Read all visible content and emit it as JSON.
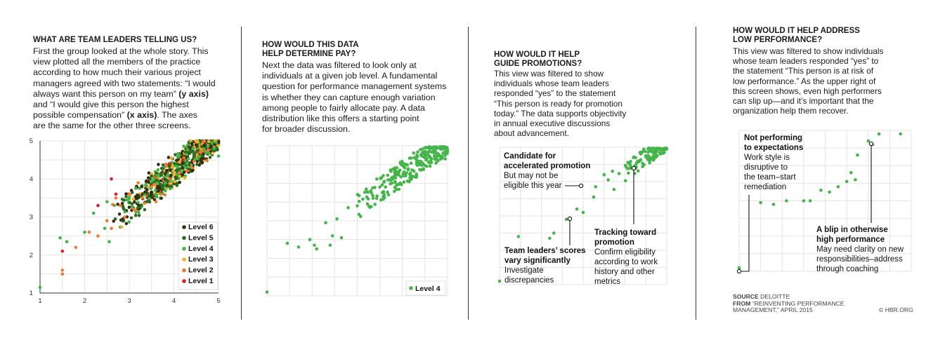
{
  "panels": [
    {
      "heading": "WHAT ARE TEAM LEADERS TELLING US?",
      "body": [
        "First the group looked at the whole story. This",
        "view plotted all the members of the practice",
        "according to how much their various project",
        "managers agreed with two statements: “I would",
        "always want this person on my team” (y axis)",
        "and “I would give this person the highest",
        "possible compensation” (x axis). The axes",
        "are the same for the other three screens."
      ]
    },
    {
      "heading": [
        "HOW WOULD THIS DATA",
        "HELP DETERMINE PAY?"
      ],
      "body": [
        "Next the data was filtered to look only at",
        "individuals at a given job level. A fundamental",
        "question for performance management systems",
        "is whether they can capture enough variation",
        "among people to fairly allocate pay. A data",
        "distribution like this offers a starting point",
        "for broader discussion."
      ]
    },
    {
      "heading": [
        "HOW WOULD IT HELP",
        "GUIDE PROMOTIONS?"
      ],
      "body": [
        "This view was filtered to show",
        "individuals whose team leaders",
        "responded “yes” to the statement",
        "“This person is ready for promotion",
        "today.” The data supports objectivity",
        "in annual executive discussions",
        "about advancement."
      ]
    },
    {
      "heading": [
        "HOW WOULD IT HELP ADDRESS",
        "LOW PERFORMANCE?"
      ],
      "body": [
        "This view was filtered to show individuals",
        "whose team leaders responded “yes” to",
        "the statement “This person is at risk of",
        "low performance.” As the upper right of",
        "this screen shows, even high performers",
        "can slip up—and it’s important that the",
        "organization help them recover."
      ]
    }
  ],
  "annotations": {
    "accelerated": [
      "Candidate for",
      "accelerated promotion",
      "But may not be",
      "eligible this year"
    ],
    "tracking": [
      "Tracking toward",
      "promotion",
      "Confirm eligibility",
      "according to work",
      "history and other",
      "metrics"
    ],
    "vary": [
      "Team leaders’ scores",
      "vary significantly",
      "Investigate",
      "discrepancies"
    ],
    "notperf": [
      "Not performing",
      "to expectations",
      "Work style is",
      "disruptive to",
      "the team–start",
      "remediation"
    ],
    "blip": [
      "A blip in otherwise",
      "high performance",
      "May need clarity on new",
      "responsibilities–address",
      "through coaching"
    ]
  },
  "source": {
    "label1": "SOURCE",
    "text1": "DELOITTE",
    "label2": "FROM",
    "text2": "“REINVENTING PERFORMANCE",
    "text3": "MANAGEMENT,” APRIL 2015",
    "credit": "© HBR.ORG"
  },
  "colors": {
    "level6": "#3d2b10",
    "level5": "#2e6b22",
    "level4": "#44b549",
    "level3": "#f0b323",
    "level2": "#f07a30",
    "level1": "#d8202a",
    "divider": "#333333"
  },
  "chart_data": [
    {
      "type": "scatter",
      "xlim": [
        1,
        5
      ],
      "ylim": [
        1,
        5
      ],
      "x_ticks": [
        "1",
        "2",
        "3",
        "4",
        "5"
      ],
      "y_ticks": [
        "1",
        "2",
        "3",
        "4",
        "5"
      ],
      "legend": [
        "Level 6",
        "Level 5",
        "Level 4",
        "Level 3",
        "Level 2",
        "Level 1"
      ],
      "legend_position": "bottom-right",
      "grid": true,
      "series": [
        {
          "name": "Level 1",
          "points": [
            [
              1.5,
              2.1
            ],
            [
              2.6,
              4.0
            ],
            [
              2.7,
              3.6
            ],
            [
              2.3,
              3.3
            ],
            [
              4.2,
              4.5
            ],
            [
              3.9,
              4.4
            ]
          ]
        },
        {
          "name": "Level 2",
          "points": [
            [
              1.5,
              1.6
            ],
            [
              1.5,
              1.5
            ],
            [
              1.8,
              2.2
            ],
            [
              2.1,
              2.6
            ],
            [
              2.3,
              2.5
            ],
            [
              2.6,
              2.7
            ],
            [
              2.9,
              3.0
            ],
            [
              3.1,
              3.2
            ],
            [
              3.0,
              3.6
            ],
            [
              3.3,
              3.5
            ],
            [
              3.5,
              3.8
            ],
            [
              3.7,
              3.6
            ],
            [
              2.8,
              3.3
            ],
            [
              2.5,
              2.9
            ],
            [
              3.2,
              3.9
            ],
            [
              3.6,
              3.4
            ],
            [
              3.9,
              4.0
            ],
            [
              2.7,
              3.5
            ]
          ]
        },
        {
          "name": "Level 4",
          "points": [
            [
              1.0,
              1.15
            ],
            [
              1.45,
              2.45
            ],
            [
              1.6,
              2.35
            ],
            [
              2.0,
              2.6
            ],
            [
              2.2,
              3.1
            ],
            [
              2.45,
              2.7
            ],
            [
              2.5,
              3.4
            ],
            [
              2.55,
              2.35
            ],
            [
              4.9,
              4.8
            ],
            [
              5.0,
              4.6
            ]
          ]
        },
        {
          "name": "Level 5",
          "points": []
        },
        {
          "name": "Level 6",
          "points": []
        }
      ]
    },
    {
      "type": "scatter",
      "xlim": [
        1,
        5
      ],
      "ylim": [
        1,
        5
      ],
      "legend": [
        "Level 4"
      ],
      "legend_position": "bottom-right",
      "grid": true,
      "series": [
        {
          "name": "Level 4",
          "points": [
            [
              1.0,
              1.1
            ],
            [
              1.45,
              2.4
            ],
            [
              1.7,
              2.3
            ],
            [
              1.95,
              2.5
            ],
            [
              2.05,
              2.35
            ],
            [
              2.1,
              2.25
            ],
            [
              2.3,
              2.95
            ],
            [
              2.4,
              2.35
            ],
            [
              2.45,
              2.6
            ],
            [
              2.55,
              3.05
            ],
            [
              2.65,
              2.55
            ],
            [
              2.8,
              3.35
            ],
            [
              3.0,
              3.4
            ],
            [
              3.3,
              3.8
            ],
            [
              3.5,
              3.9
            ],
            [
              3.6,
              4.05
            ],
            [
              4.95,
              4.65
            ],
            [
              5.0,
              4.85
            ]
          ]
        }
      ]
    },
    {
      "type": "scatter",
      "xlim": [
        1,
        5
      ],
      "ylim": [
        1,
        5
      ],
      "grid": true,
      "series": [
        {
          "name": "",
          "points": [
            [
              1.0,
              1.1
            ],
            [
              1.45,
              2.4
            ],
            [
              2.2,
              2.35
            ],
            [
              2.3,
              2.5
            ],
            [
              2.6,
              2.9
            ],
            [
              2.85,
              3.2
            ],
            [
              3.0,
              3.1
            ],
            [
              3.25,
              3.55
            ],
            [
              3.3,
              3.85
            ],
            [
              3.5,
              4.2
            ],
            [
              3.6,
              4.05
            ],
            [
              3.7,
              4.3
            ],
            [
              4.5,
              4.75
            ],
            [
              5.0,
              4.95
            ]
          ]
        }
      ]
    },
    {
      "type": "scatter",
      "xlim": [
        1,
        5
      ],
      "ylim": [
        1,
        5
      ],
      "grid": true,
      "series": [
        {
          "name": "",
          "points": [
            [
              1.0,
              1.1
            ],
            [
              1.5,
              2.95
            ],
            [
              1.8,
              2.9
            ],
            [
              2.1,
              3.0
            ],
            [
              2.5,
              3.0
            ],
            [
              2.65,
              3.0
            ],
            [
              2.9,
              3.3
            ],
            [
              3.1,
              3.25
            ],
            [
              3.3,
              3.4
            ],
            [
              3.5,
              3.55
            ],
            [
              3.7,
              3.6
            ],
            [
              3.6,
              3.8
            ],
            [
              3.75,
              4.3
            ],
            [
              4.0,
              4.7
            ],
            [
              4.1,
              4.6
            ],
            [
              4.25,
              4.9
            ],
            [
              4.75,
              4.9
            ]
          ]
        }
      ]
    }
  ]
}
